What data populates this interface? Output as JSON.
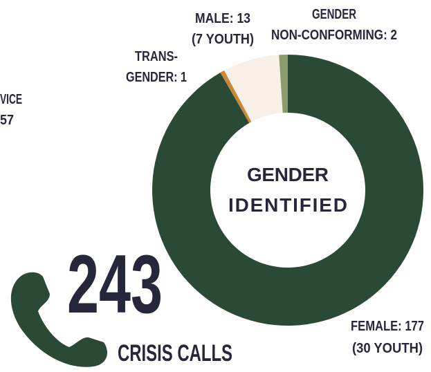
{
  "chart_data": {
    "type": "pie",
    "donut": true,
    "categories": [
      "FEMALE",
      "TRANSGENDER",
      "MALE",
      "GENDER NON-CONFORMING"
    ],
    "values": [
      177,
      1,
      13,
      2
    ],
    "value_labels": [
      [
        "FEMALE: 177",
        "(30 YOUTH)"
      ],
      [
        "TRANS-",
        "GENDER: 1"
      ],
      [
        "MALE: 13",
        "(7 YOUTH)"
      ],
      [
        "GENDER",
        "NON-CONFORMING: 2"
      ]
    ],
    "colors": [
      "#2b4a35",
      "#c8873a",
      "#f8efe6",
      "#8a9a6a"
    ],
    "center_label": [
      "GENDER",
      "IDENTIFIED"
    ]
  },
  "calls": {
    "count": "243",
    "label": "CRISIS CALLS"
  },
  "cut_off_text": [
    "VICE",
    "57"
  ]
}
